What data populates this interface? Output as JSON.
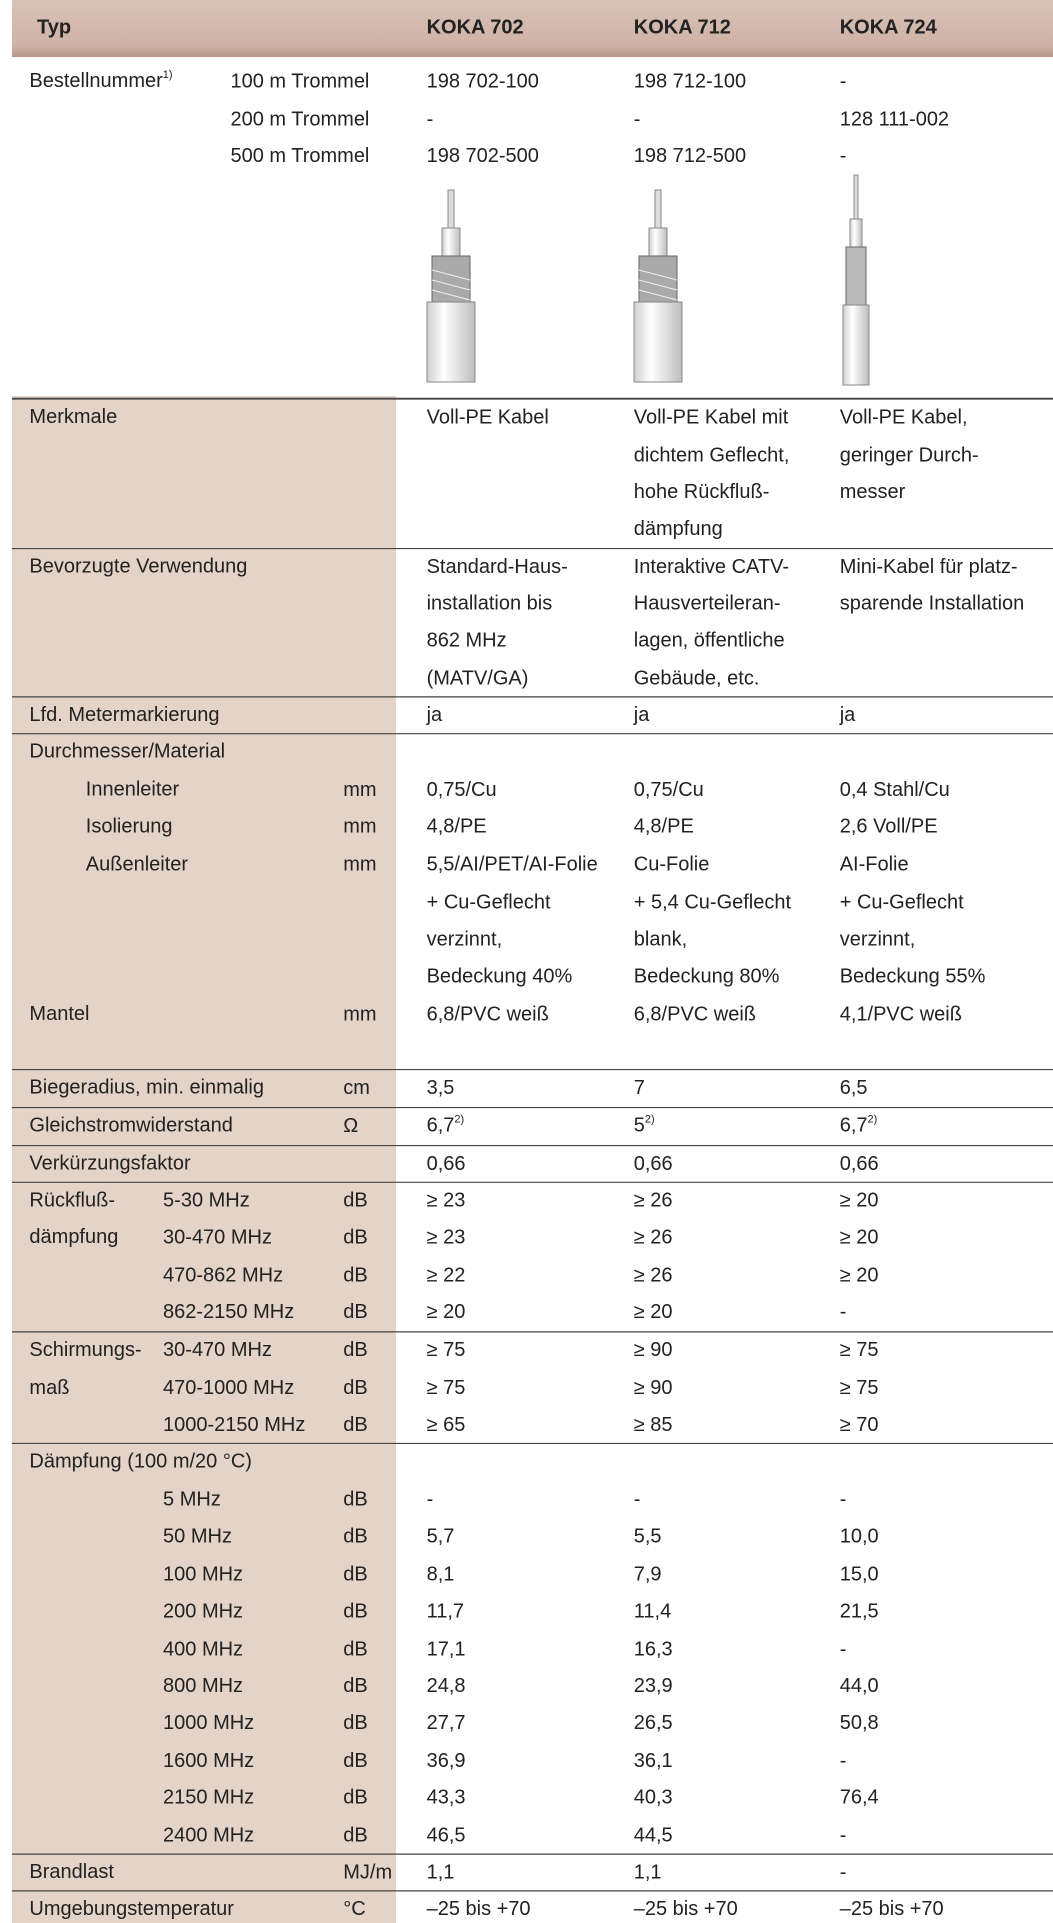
{
  "header": {
    "typ": "Typ",
    "columns": [
      "KOKA 702",
      "KOKA 712",
      "KOKA 724"
    ]
  },
  "rows": [
    {
      "label": "Bestellnummer",
      "label_sup": "1)",
      "sub": "100 m Trommel",
      "values": [
        "198 702-100",
        "198 712-100",
        "-"
      ]
    },
    {
      "sub": "200 m Trommel",
      "values": [
        "-",
        "-",
        "128 111-002"
      ]
    },
    {
      "sub": "500 m Trommel",
      "values": [
        "198 702-500",
        "198 712-500",
        "-"
      ]
    },
    {
      "label": "Merkmale",
      "values": [
        "Voll-PE Kabel",
        "Voll-PE Kabel mit",
        "Voll-PE Kabel,"
      ]
    },
    {
      "values": [
        null,
        "dichtem Geflecht,",
        "geringer Durch-"
      ]
    },
    {
      "values": [
        null,
        "hohe Rückfluß-",
        "messer"
      ]
    },
    {
      "values": [
        null,
        "dämpfung",
        null
      ]
    },
    {
      "label": "Bevorzugte Verwendung",
      "values": [
        "Standard-Haus-",
        "Interaktive CATV-",
        "Mini-Kabel für platz-"
      ]
    },
    {
      "values": [
        "installation bis",
        "Hausverteileran-",
        "sparende Installation"
      ]
    },
    {
      "values": [
        "862 MHz",
        "lagen, öffentliche",
        null
      ]
    },
    {
      "values": [
        "(MATV/GA)",
        "Gebäude, etc.",
        null
      ]
    },
    {
      "label": "Lfd. Metermarkierung",
      "values": [
        "ja",
        "ja",
        "ja"
      ]
    },
    {
      "label": "Durchmesser/Material",
      "values": [
        null,
        null,
        null
      ]
    },
    {
      "label": "Innenleiter",
      "unit": "mm",
      "values": [
        "0,75/Cu",
        "0,75/Cu",
        "0,4 Stahl/Cu"
      ]
    },
    {
      "label": "Isolierung",
      "unit": "mm",
      "values": [
        "4,8/PE",
        "4,8/PE",
        "2,6 Voll/PE"
      ]
    },
    {
      "label": "Außenleiter",
      "unit": "mm",
      "values": [
        "5,5/AI/PET/AI-Folie",
        "Cu-Folie",
        "AI-Folie"
      ]
    },
    {
      "values": [
        "+ Cu-Geflecht",
        "+ 5,4 Cu-Geflecht",
        "+ Cu-Geflecht"
      ]
    },
    {
      "values": [
        "verzinnt,",
        "blank,",
        "verzinnt,"
      ]
    },
    {
      "values": [
        "Bedeckung 40%",
        "Bedeckung 80%",
        "Bedeckung 55%"
      ]
    },
    {
      "label": "Mantel",
      "unit": "mm",
      "values": [
        "6,8/PVC weiß",
        "6,8/PVC weiß",
        "4,1/PVC weiß"
      ]
    },
    {
      "label": "Biegeradius, min. einmalig",
      "unit": "cm",
      "values": [
        "3,5",
        "7",
        "6,5"
      ]
    },
    {
      "label": "Gleichstromwiderstand",
      "unit": "Ω",
      "values": [
        {
          "text": "6,7",
          "sup": "2)"
        },
        {
          "text": "5",
          "sup": "2)"
        },
        {
          "text": "6,7",
          "sup": "2)"
        }
      ]
    },
    {
      "label": "Verkürzungsfaktor",
      "values": [
        "0,66",
        "0,66",
        "0,66"
      ]
    },
    {
      "label": "Rückfluß-",
      "sub": "5-30 MHz",
      "unit": "dB",
      "values": [
        "≥ 23",
        "≥ 26",
        "≥ 20"
      ]
    },
    {
      "label": "dämpfung",
      "sub": "30-470 MHz",
      "unit": "dB",
      "values": [
        "≥ 23",
        "≥ 26",
        "≥ 20"
      ]
    },
    {
      "sub": "470-862 MHz",
      "unit": "dB",
      "values": [
        "≥ 22",
        "≥ 26",
        "≥ 20"
      ]
    },
    {
      "sub": "862-2150 MHz",
      "unit": "dB",
      "values": [
        "≥ 20",
        "≥ 20",
        "-"
      ]
    },
    {
      "label": "Schirmungs-",
      "sub": "30-470 MHz",
      "unit": "dB",
      "values": [
        "≥ 75",
        "≥ 90",
        "≥ 75"
      ]
    },
    {
      "label": "maß",
      "sub": "470-1000 MHz",
      "unit": "dB",
      "values": [
        "≥ 75",
        "≥ 90",
        "≥ 75"
      ]
    },
    {
      "sub": "1000-2150 MHz",
      "unit": "dB",
      "values": [
        "≥ 65",
        "≥ 85",
        "≥ 70"
      ]
    },
    {
      "label": "Dämpfung (100 m/20 °C)",
      "values": [
        null,
        null,
        null
      ]
    },
    {
      "sub": "5 MHz",
      "unit": "dB",
      "values": [
        "-",
        "-",
        "-"
      ]
    },
    {
      "sub": "50 MHz",
      "unit": "dB",
      "values": [
        "5,7",
        "5,5",
        "10,0"
      ]
    },
    {
      "sub": "100 MHz",
      "unit": "dB",
      "values": [
        "8,1",
        "7,9",
        "15,0"
      ]
    },
    {
      "sub": "200 MHz",
      "unit": "dB",
      "values": [
        "11,7",
        "11,4",
        "21,5"
      ]
    },
    {
      "sub": "400 MHz",
      "unit": "dB",
      "values": [
        "17,1",
        "16,3",
        "-"
      ]
    },
    {
      "sub": "800 MHz",
      "unit": "dB",
      "values": [
        "24,8",
        "23,9",
        "44,0"
      ]
    },
    {
      "sub": "1000 MHz",
      "unit": "dB",
      "values": [
        "27,7",
        "26,5",
        "50,8"
      ]
    },
    {
      "sub": "1600 MHz",
      "unit": "dB",
      "values": [
        "36,9",
        "36,1",
        "-"
      ]
    },
    {
      "sub": "2150 MHz",
      "unit": "dB",
      "values": [
        "43,3",
        "40,3",
        "76,4"
      ]
    },
    {
      "sub": "2400 MHz",
      "unit": "dB",
      "values": [
        "46,5",
        "44,5",
        "-"
      ]
    },
    {
      "label": "Brandlast",
      "unit": "MJ/m",
      "values": [
        "1,1",
        "1,1",
        "-"
      ]
    },
    {
      "label": "Umgebungstemperatur",
      "unit": "°C",
      "values": [
        "–25 bis +70",
        "–25 bis +70",
        "–25 bis +70"
      ]
    }
  ]
}
